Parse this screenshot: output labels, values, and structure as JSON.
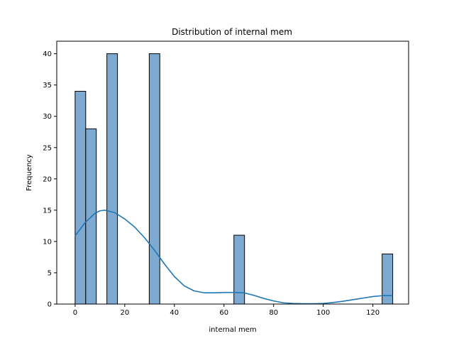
{
  "chart_data": {
    "type": "bar",
    "title": "Distribution of internal mem",
    "xlabel": "internal mem",
    "ylabel": "Frequency",
    "xlim": [
      -7.4,
      134.4
    ],
    "ylim": [
      0,
      42
    ],
    "x_ticks": [
      0,
      20,
      40,
      60,
      80,
      100,
      120
    ],
    "y_ticks": [
      0,
      5,
      10,
      15,
      20,
      25,
      30,
      35,
      40
    ],
    "bins": [
      {
        "x0": 0,
        "x1": 4.27,
        "count": 34
      },
      {
        "x0": 4.27,
        "x1": 8.53,
        "count": 28
      },
      {
        "x0": 12.8,
        "x1": 17.07,
        "count": 40
      },
      {
        "x0": 29.87,
        "x1": 34.13,
        "count": 40
      },
      {
        "x0": 64.0,
        "x1": 68.27,
        "count": 11
      },
      {
        "x0": 123.73,
        "x1": 128.0,
        "count": 8
      }
    ],
    "kde": {
      "x": [
        0,
        4,
        8,
        10,
        12,
        16,
        20,
        24,
        28,
        32,
        36,
        40,
        44,
        48,
        52,
        56,
        60,
        64,
        68,
        72,
        76,
        80,
        84,
        88,
        92,
        96,
        100,
        104,
        108,
        112,
        116,
        120,
        124,
        128
      ],
      "y": [
        10.9,
        13.0,
        14.5,
        14.9,
        15.0,
        14.6,
        13.6,
        12.3,
        10.6,
        8.6,
        6.4,
        4.4,
        2.9,
        2.1,
        1.8,
        1.8,
        1.85,
        1.85,
        1.8,
        1.4,
        0.9,
        0.5,
        0.2,
        0.1,
        0.05,
        0.05,
        0.1,
        0.25,
        0.45,
        0.7,
        0.95,
        1.2,
        1.35,
        1.35
      ]
    },
    "colors": {
      "bar_fill": "#7ea9d1",
      "bar_edge": "#000000",
      "kde_line": "#1f77b4"
    },
    "grid": false,
    "legend": "none"
  }
}
